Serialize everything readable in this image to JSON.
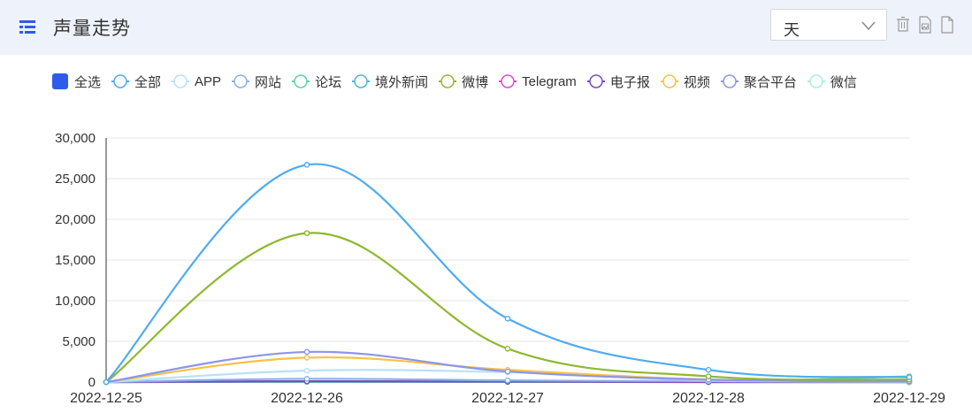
{
  "header": {
    "title": "声量走势",
    "title_icon": "list-icon",
    "granularity_select": {
      "value": "天",
      "icon": "chevron-down-icon"
    },
    "tools": [
      "trash-icon",
      "image-export-icon",
      "document-export-icon"
    ]
  },
  "colors": {
    "header_bg": "#eef3fb",
    "accent": "#2f5be9"
  },
  "legend": [
    {
      "label": "全选",
      "kind": "checkbox",
      "color": "#2f5be9"
    },
    {
      "label": "全部",
      "color": "#4facf0"
    },
    {
      "label": "APP",
      "color": "#b8e2f7"
    },
    {
      "label": "网站",
      "color": "#8eaee8"
    },
    {
      "label": "论坛",
      "color": "#5fd3a3"
    },
    {
      "label": "境外新闻",
      "color": "#4fb6d6"
    },
    {
      "label": "微博",
      "color": "#8db92e"
    },
    {
      "label": "Telegram",
      "color": "#e04bc7"
    },
    {
      "label": "电子报",
      "color": "#7a4bc0"
    },
    {
      "label": "视频",
      "color": "#f5c244"
    },
    {
      "label": "聚合平台",
      "color": "#8d95ea"
    },
    {
      "label": "微信",
      "color": "#a8eede"
    }
  ],
  "chart_data": {
    "type": "line",
    "x": [
      "2022-12-25",
      "2022-12-26",
      "2022-12-27",
      "2022-12-28",
      "2022-12-29"
    ],
    "ylim": [
      0,
      30000
    ],
    "yticks": [
      0,
      5000,
      10000,
      15000,
      20000,
      25000,
      30000
    ],
    "ytick_labels": [
      "0",
      "5,000",
      "10,000",
      "15,000",
      "20,000",
      "25,000",
      "30,000"
    ],
    "grid": true,
    "legend_position": "top-left",
    "smooth": true,
    "series": [
      {
        "name": "全部",
        "color": "#4facf0",
        "values": [
          0,
          26700,
          7800,
          1500,
          600
        ]
      },
      {
        "name": "微博",
        "color": "#8db92e",
        "values": [
          0,
          18300,
          4100,
          700,
          300
        ]
      },
      {
        "name": "聚合平台",
        "color": "#8d95ea",
        "values": [
          0,
          3700,
          1300,
          300,
          100
        ]
      },
      {
        "name": "视频",
        "color": "#f5c244",
        "values": [
          0,
          3000,
          1500,
          300,
          100
        ]
      },
      {
        "name": "APP",
        "color": "#b8e2f7",
        "values": [
          0,
          1400,
          1200,
          200,
          100
        ]
      },
      {
        "name": "网站",
        "color": "#8eaee8",
        "values": [
          0,
          400,
          200,
          100,
          0
        ]
      },
      {
        "name": "电子报",
        "color": "#7a4bc0",
        "values": [
          0,
          100,
          50,
          0,
          0
        ]
      },
      {
        "name": "论坛",
        "color": "#5fd3a3",
        "values": [
          0,
          50,
          20,
          10,
          700
        ]
      },
      {
        "name": "境外新闻",
        "color": "#4fb6d6",
        "values": [
          0,
          30,
          20,
          10,
          0
        ]
      },
      {
        "name": "Telegram",
        "color": "#e04bc7",
        "values": [
          0,
          20,
          10,
          0,
          0
        ]
      },
      {
        "name": "微信",
        "color": "#a8eede",
        "values": [
          0,
          20,
          10,
          0,
          0
        ]
      }
    ]
  }
}
